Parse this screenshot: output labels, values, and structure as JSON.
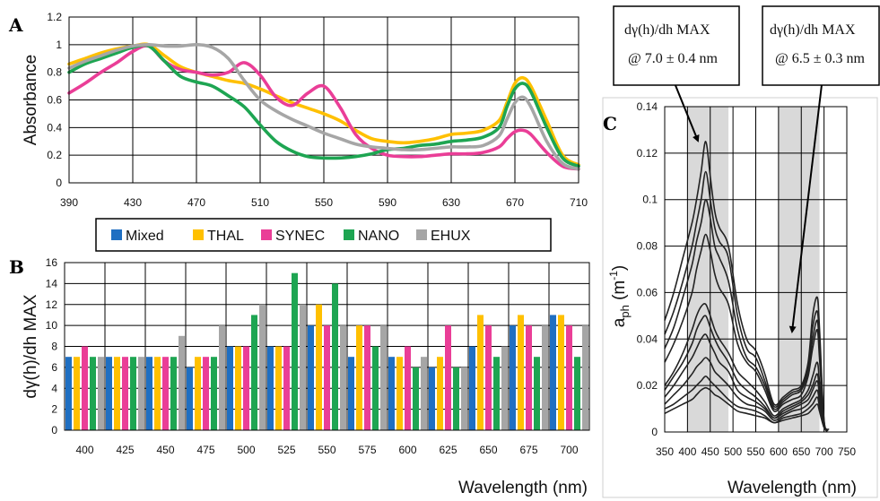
{
  "colors": {
    "Mixed": "#1f6fc2",
    "THAL": "#ffc000",
    "SYNEC": "#ea3e97",
    "NANO": "#1ea552",
    "EHUX": "#a6a6a6"
  },
  "panels": {
    "a": "A",
    "b": "B",
    "c": "C"
  },
  "annotations": [
    {
      "line1": "dγ(h)/dh MAX",
      "line2": "@ 7.0 ± 0.4 nm"
    },
    {
      "line1": "dγ(h)/dh MAX",
      "line2": "@ 6.5 ± 0.3 nm"
    }
  ],
  "chart_data": [
    {
      "type": "line",
      "panel": "A",
      "ylabel": "Absorbance",
      "xlim": [
        390,
        710
      ],
      "ylim": [
        0,
        1.2
      ],
      "xticks": [
        390,
        430,
        470,
        510,
        550,
        590,
        630,
        670,
        710
      ],
      "yticks": [
        0,
        0.2,
        0.4,
        0.6,
        0.8,
        1,
        1.2
      ],
      "grid": true,
      "x": [
        390,
        400,
        410,
        420,
        430,
        440,
        450,
        460,
        470,
        480,
        490,
        500,
        510,
        520,
        530,
        540,
        550,
        560,
        570,
        580,
        590,
        600,
        610,
        620,
        630,
        640,
        650,
        660,
        665,
        670,
        675,
        680,
        690,
        700,
        710
      ],
      "series": [
        {
          "name": "THAL",
          "values": [
            0.86,
            0.9,
            0.94,
            0.97,
            0.99,
            1.0,
            0.92,
            0.84,
            0.8,
            0.77,
            0.74,
            0.72,
            0.68,
            0.63,
            0.58,
            0.54,
            0.5,
            0.45,
            0.38,
            0.32,
            0.3,
            0.29,
            0.3,
            0.32,
            0.35,
            0.36,
            0.38,
            0.45,
            0.58,
            0.72,
            0.76,
            0.7,
            0.45,
            0.2,
            0.13
          ]
        },
        {
          "name": "SYNEC",
          "values": [
            0.65,
            0.72,
            0.8,
            0.87,
            0.95,
            0.99,
            0.88,
            0.82,
            0.8,
            0.78,
            0.8,
            0.87,
            0.78,
            0.62,
            0.56,
            0.65,
            0.7,
            0.55,
            0.35,
            0.25,
            0.2,
            0.19,
            0.19,
            0.2,
            0.21,
            0.21,
            0.22,
            0.26,
            0.32,
            0.37,
            0.38,
            0.35,
            0.22,
            0.12,
            0.1
          ]
        },
        {
          "name": "NANO",
          "values": [
            0.8,
            0.86,
            0.9,
            0.94,
            0.98,
            0.99,
            0.88,
            0.77,
            0.73,
            0.7,
            0.63,
            0.55,
            0.42,
            0.3,
            0.23,
            0.19,
            0.18,
            0.18,
            0.19,
            0.21,
            0.24,
            0.25,
            0.27,
            0.28,
            0.3,
            0.31,
            0.33,
            0.4,
            0.55,
            0.68,
            0.72,
            0.66,
            0.4,
            0.18,
            0.12
          ]
        },
        {
          "name": "EHUX",
          "values": [
            0.83,
            0.88,
            0.92,
            0.96,
            0.99,
            1.0,
            0.99,
            0.99,
            1.0,
            0.98,
            0.9,
            0.74,
            0.6,
            0.52,
            0.46,
            0.41,
            0.36,
            0.32,
            0.28,
            0.26,
            0.25,
            0.24,
            0.24,
            0.25,
            0.26,
            0.26,
            0.27,
            0.34,
            0.46,
            0.58,
            0.62,
            0.55,
            0.3,
            0.14,
            0.1
          ]
        }
      ]
    },
    {
      "type": "bar",
      "panel": "B",
      "ylabel": "dγ(h)/dh MAX",
      "xlabel": "Wavelength (nm)",
      "ylim": [
        0,
        16
      ],
      "yticks": [
        0,
        2,
        4,
        6,
        8,
        10,
        12,
        14,
        16
      ],
      "grid": true,
      "legend": {
        "placement": "top",
        "labels": [
          "Mixed",
          "THAL",
          "SYNEC",
          "NANO",
          "EHUX"
        ]
      },
      "categories": [
        "400",
        "425",
        "450",
        "475",
        "500",
        "525",
        "550",
        "575",
        "600",
        "625",
        "650",
        "675",
        "700"
      ],
      "series": [
        {
          "name": "Mixed",
          "values": [
            7,
            7,
            7,
            6,
            8,
            8,
            10,
            7,
            7,
            6,
            8,
            10,
            11
          ]
        },
        {
          "name": "THAL",
          "values": [
            7,
            7,
            7,
            7,
            8,
            8,
            12,
            10,
            7,
            7,
            11,
            11,
            11
          ]
        },
        {
          "name": "SYNEC",
          "values": [
            8,
            7,
            7,
            7,
            8,
            8,
            10,
            10,
            8,
            10,
            10,
            10,
            10
          ]
        },
        {
          "name": "NANO",
          "values": [
            7,
            7,
            7,
            7,
            11,
            15,
            14,
            8,
            6,
            6,
            7,
            7,
            7
          ]
        },
        {
          "name": "EHUX",
          "values": [
            7,
            7,
            9,
            10,
            12,
            12,
            10,
            10,
            7,
            6,
            8,
            10,
            10
          ]
        }
      ]
    },
    {
      "type": "line",
      "panel": "C",
      "ylabel": "aph (m-1)",
      "ylabel_main": "a",
      "ylabel_sub": "ph",
      "ylabel_unit": " (m",
      "ylabel_sup": "-1",
      "ylabel_close": ")",
      "xlabel": "Wavelength (nm)",
      "xlim": [
        350,
        750
      ],
      "ylim": [
        0,
        0.14
      ],
      "xticks": [
        350,
        400,
        450,
        500,
        550,
        600,
        650,
        700,
        750
      ],
      "yticks": [
        0,
        0.02,
        0.04,
        0.06,
        0.08,
        0.1,
        0.12,
        0.14
      ],
      "yticklabels": [
        "0",
        "0.02",
        "0.04",
        "0.06",
        "0.08",
        "0.1",
        "0.12",
        "0.14"
      ],
      "grid": true,
      "shaded_ranges": [
        [
          400,
          490
        ],
        [
          600,
          690
        ]
      ],
      "x": [
        350,
        370,
        390,
        410,
        420,
        430,
        440,
        450,
        460,
        470,
        490,
        510,
        530,
        550,
        570,
        590,
        610,
        630,
        650,
        665,
        675,
        685,
        690,
        700,
        710
      ],
      "spectra": [
        {
          "values": [
            0.048,
            0.06,
            0.075,
            0.09,
            0.1,
            0.112,
            0.125,
            0.11,
            0.095,
            0.088,
            0.08,
            0.055,
            0.04,
            0.035,
            0.025,
            0.012,
            0.015,
            0.018,
            0.02,
            0.03,
            0.05,
            0.058,
            0.045,
            0.005,
            0.001
          ]
        },
        {
          "values": [
            0.042,
            0.052,
            0.065,
            0.08,
            0.09,
            0.1,
            0.112,
            0.1,
            0.088,
            0.082,
            0.075,
            0.05,
            0.036,
            0.032,
            0.022,
            0.011,
            0.014,
            0.017,
            0.019,
            0.028,
            0.045,
            0.052,
            0.04,
            0.005,
            0.001
          ]
        },
        {
          "values": [
            0.036,
            0.045,
            0.058,
            0.072,
            0.082,
            0.09,
            0.1,
            0.092,
            0.08,
            0.075,
            0.065,
            0.044,
            0.032,
            0.028,
            0.02,
            0.01,
            0.013,
            0.016,
            0.018,
            0.026,
            0.04,
            0.048,
            0.036,
            0.004,
            0.001
          ]
        },
        {
          "values": [
            0.03,
            0.038,
            0.048,
            0.06,
            0.07,
            0.078,
            0.085,
            0.078,
            0.068,
            0.062,
            0.055,
            0.038,
            0.03,
            0.026,
            0.018,
            0.009,
            0.012,
            0.014,
            0.016,
            0.024,
            0.036,
            0.044,
            0.032,
            0.004,
            0.001
          ]
        },
        {
          "values": [
            0.02,
            0.026,
            0.034,
            0.044,
            0.05,
            0.054,
            0.055,
            0.05,
            0.044,
            0.04,
            0.034,
            0.026,
            0.022,
            0.018,
            0.013,
            0.007,
            0.01,
            0.012,
            0.014,
            0.018,
            0.024,
            0.03,
            0.022,
            0.003,
            0.001
          ]
        },
        {
          "values": [
            0.018,
            0.024,
            0.03,
            0.038,
            0.044,
            0.048,
            0.05,
            0.045,
            0.04,
            0.036,
            0.03,
            0.022,
            0.018,
            0.015,
            0.011,
            0.006,
            0.009,
            0.011,
            0.013,
            0.016,
            0.02,
            0.025,
            0.018,
            0.003,
            0.001
          ]
        },
        {
          "values": [
            0.015,
            0.02,
            0.026,
            0.032,
            0.036,
            0.04,
            0.042,
            0.038,
            0.034,
            0.03,
            0.026,
            0.018,
            0.015,
            0.013,
            0.01,
            0.006,
            0.008,
            0.01,
            0.012,
            0.014,
            0.018,
            0.022,
            0.016,
            0.003,
            0.001
          ]
        },
        {
          "values": [
            0.012,
            0.016,
            0.02,
            0.025,
            0.028,
            0.03,
            0.032,
            0.03,
            0.026,
            0.024,
            0.02,
            0.015,
            0.012,
            0.011,
            0.009,
            0.005,
            0.007,
            0.009,
            0.01,
            0.012,
            0.015,
            0.018,
            0.013,
            0.002,
            0.001
          ]
        },
        {
          "values": [
            0.01,
            0.012,
            0.015,
            0.018,
            0.02,
            0.022,
            0.024,
            0.022,
            0.02,
            0.018,
            0.014,
            0.011,
            0.01,
            0.009,
            0.007,
            0.004,
            0.006,
            0.007,
            0.008,
            0.01,
            0.012,
            0.015,
            0.011,
            0.002,
            0.001
          ]
        },
        {
          "values": [
            0.008,
            0.01,
            0.012,
            0.014,
            0.016,
            0.018,
            0.019,
            0.018,
            0.016,
            0.015,
            0.012,
            0.009,
            0.008,
            0.007,
            0.006,
            0.004,
            0.005,
            0.006,
            0.007,
            0.008,
            0.01,
            0.012,
            0.009,
            0.002,
            0.001
          ]
        }
      ]
    }
  ]
}
